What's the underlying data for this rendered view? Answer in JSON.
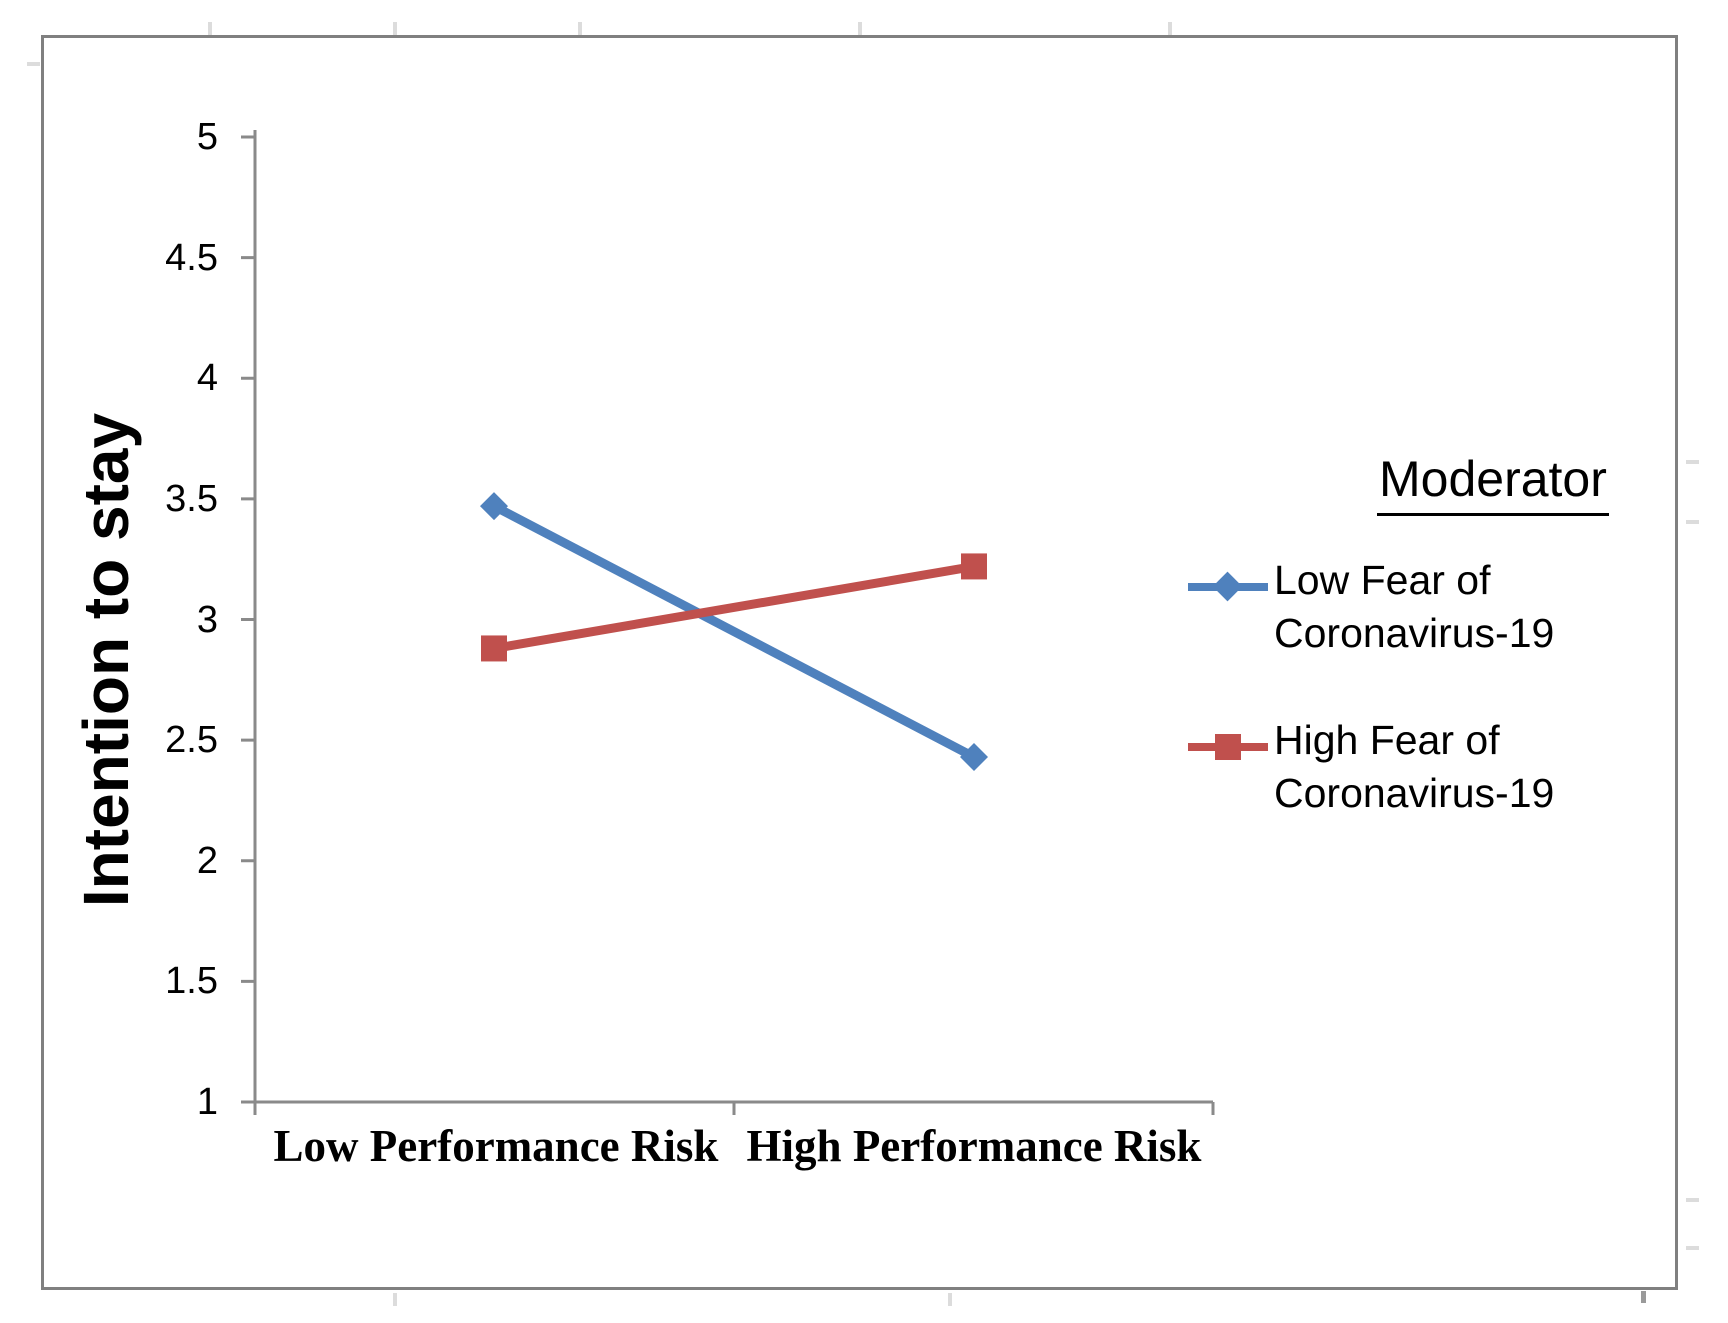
{
  "figure": {
    "background": "#ffffff",
    "frame_border_color": "#808080"
  },
  "chart_data": {
    "type": "line",
    "title": "",
    "ylabel": "Intention to stay",
    "xlabel": "",
    "categories": [
      "Low Performance Risk",
      "High Performance Risk"
    ],
    "series": [
      {
        "name": "Low Fear of Coronavirus-19",
        "marker": "diamond",
        "color": "#4F81BD",
        "values": [
          3.47,
          2.43
        ]
      },
      {
        "name": "High Fear of Coronavirus-19",
        "marker": "square",
        "color": "#C0504D",
        "values": [
          2.88,
          3.22
        ]
      }
    ],
    "ylim": [
      1,
      5
    ],
    "ytick_step": 0.5,
    "yticks": [
      "5",
      "4.5",
      "4",
      "3.5",
      "3",
      "2.5",
      "2",
      "1.5",
      "1"
    ],
    "grid": false,
    "axis_color": "#8A8A8A",
    "legend": {
      "title": "Moderator",
      "position": "right",
      "entries": [
        {
          "lines": [
            "Low Fear of",
            "Coronavirus-19"
          ],
          "color": "#4F81BD",
          "marker": "diamond"
        },
        {
          "lines": [
            "High Fear of",
            "Coronavirus-19"
          ],
          "color": "#C0504D",
          "marker": "square"
        }
      ]
    }
  }
}
